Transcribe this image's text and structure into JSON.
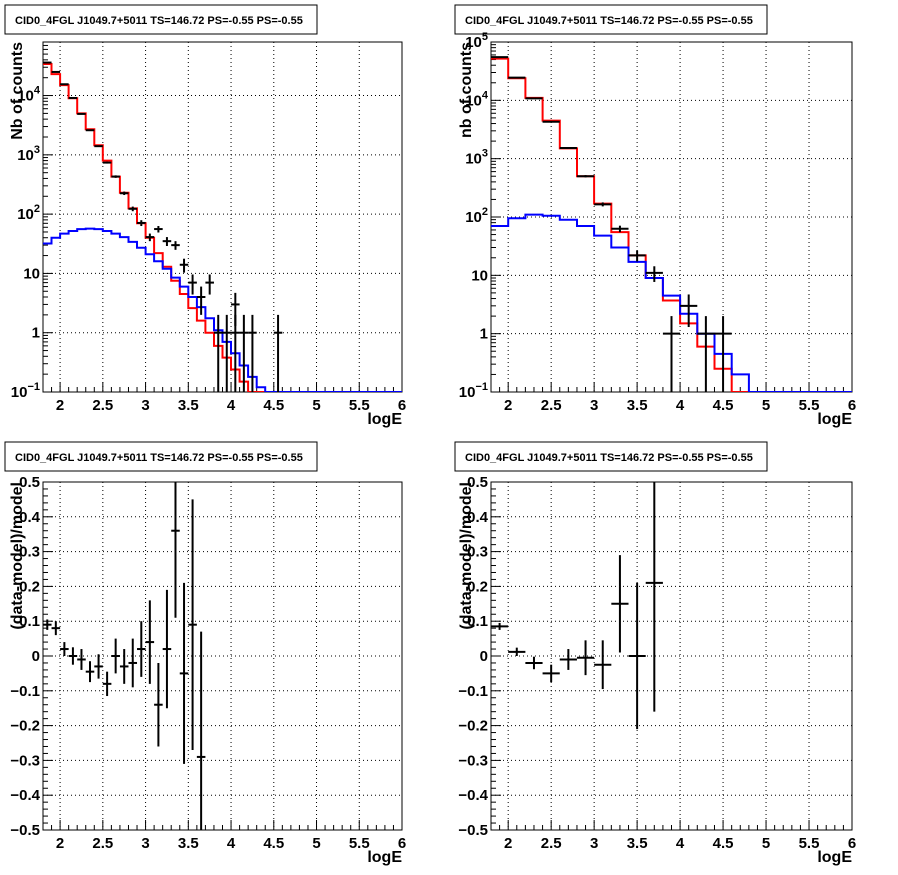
{
  "figure_title": "CID0_4FGL J1049.7+5011 TS=146.72 PS=-0.55 PS=-0.55",
  "colors": {
    "data": "#000000",
    "total_model": "#ff0000",
    "background_model": "#0000ff",
    "grid": "#000000",
    "frame": "#000000"
  },
  "chart_data": [
    {
      "type": "line",
      "title": "CID0_4FGL J1049.7+5011 TS=146.72 PS=-0.55 PS=-0.55",
      "xlabel": "logE",
      "ylabel": "Nb of counts",
      "log_y": true,
      "grid": true,
      "xlim": [
        1.8,
        6.0
      ],
      "ylim": [
        0.1,
        80000
      ],
      "xticks": [
        "2",
        "2.5",
        "3",
        "3.5",
        "4",
        "4.5",
        "5",
        "5.5",
        "6"
      ],
      "yticks": [
        "10^-1",
        "1",
        "10",
        "10^2",
        "10^3",
        "10^4"
      ],
      "bin_edges": [
        1.8,
        1.9,
        2.0,
        2.1,
        2.2,
        2.3,
        2.4,
        2.5,
        2.6,
        2.7,
        2.8,
        2.9,
        3.0,
        3.1,
        3.2,
        3.3,
        3.4,
        3.5,
        3.6,
        3.7,
        3.8,
        3.9,
        4.0,
        4.1,
        4.2,
        4.3,
        4.4,
        4.5,
        4.6,
        4.7,
        4.8,
        4.9,
        5.0,
        5.1,
        5.2,
        5.3,
        5.4,
        5.5,
        5.6,
        5.7,
        5.8,
        5.9,
        6.0
      ],
      "series": [
        {
          "role": "total_model",
          "values": [
            34000,
            23000,
            15000,
            9000,
            5000,
            2700,
            1450,
            800,
            430,
            230,
            125,
            70,
            40,
            22,
            13,
            7.5,
            4.5,
            2.6,
            1.6,
            1.0,
            0.6,
            0.38,
            0.24,
            0.15,
            0.1,
            0.1,
            0.1,
            0.1,
            0.1,
            0.1,
            0.1,
            0.1,
            0.1,
            0.1,
            0.1,
            0.1,
            0.1,
            0.1,
            0.1,
            0.1,
            0.1,
            0.1
          ]
        },
        {
          "role": "background_model",
          "values": [
            32,
            40,
            47,
            52,
            56,
            57,
            56,
            52,
            47,
            41,
            34,
            27,
            21,
            16,
            12,
            8.5,
            6,
            4,
            2.7,
            1.75,
            1.1,
            0.7,
            0.45,
            0.28,
            0.18,
            0.12,
            0.1,
            0.1,
            0.1,
            0.1,
            0.1,
            0.1,
            0.1,
            0.1,
            0.1,
            0.1,
            0.1,
            0.1,
            0.1,
            0.1,
            0.1,
            0.1
          ]
        },
        {
          "role": "data",
          "points": [
            {
              "x": 1.85,
              "y": 36000,
              "lo": 35800,
              "hi": 36200
            },
            {
              "x": 1.95,
              "y": 25000,
              "lo": 24850,
              "hi": 25150
            },
            {
              "x": 2.05,
              "y": 15500,
              "lo": 15380,
              "hi": 15620
            },
            {
              "x": 2.15,
              "y": 9100,
              "lo": 9000,
              "hi": 9200
            },
            {
              "x": 2.25,
              "y": 4900,
              "lo": 4830,
              "hi": 4970
            },
            {
              "x": 2.35,
              "y": 2600,
              "lo": 2550,
              "hi": 2650
            },
            {
              "x": 2.45,
              "y": 1400,
              "lo": 1360,
              "hi": 1440
            },
            {
              "x": 2.55,
              "y": 740,
              "lo": 713,
              "hi": 767
            },
            {
              "x": 2.65,
              "y": 430,
              "lo": 409,
              "hi": 451
            },
            {
              "x": 2.75,
              "y": 225,
              "lo": 210,
              "hi": 240
            },
            {
              "x": 2.85,
              "y": 123,
              "lo": 112,
              "hi": 134
            },
            {
              "x": 2.95,
              "y": 71,
              "lo": 63,
              "hi": 79
            },
            {
              "x": 3.05,
              "y": 41,
              "lo": 35,
              "hi": 47
            },
            {
              "x": 3.15,
              "y": 56,
              "lo": 49,
              "hi": 63
            },
            {
              "x": 3.25,
              "y": 35,
              "lo": 29,
              "hi": 41
            },
            {
              "x": 3.35,
              "y": 30,
              "lo": 25,
              "hi": 35
            },
            {
              "x": 3.45,
              "y": 14,
              "lo": 10.3,
              "hi": 17.7
            },
            {
              "x": 3.55,
              "y": 7,
              "lo": 4.4,
              "hi": 9.6
            },
            {
              "x": 3.65,
              "y": 4,
              "lo": 2,
              "hi": 6
            },
            {
              "x": 3.75,
              "y": 7,
              "lo": 4.4,
              "hi": 9.6
            },
            {
              "x": 3.85,
              "y": 1,
              "lo": 0.1,
              "hi": 2
            },
            {
              "x": 3.95,
              "y": 1,
              "lo": 0.1,
              "hi": 2
            },
            {
              "x": 4.05,
              "y": 1,
              "lo": 0.1,
              "hi": 2
            },
            {
              "x": 4.05,
              "y": 3,
              "lo": 1.3,
              "hi": 4.7
            },
            {
              "x": 4.15,
              "y": 1,
              "lo": 0.1,
              "hi": 2
            },
            {
              "x": 4.25,
              "y": 1,
              "lo": 0.1,
              "hi": 2
            },
            {
              "x": 4.55,
              "y": 1,
              "lo": 0.1,
              "hi": 2
            }
          ]
        }
      ]
    },
    {
      "type": "line",
      "title": "CID0_4FGL J1049.7+5011 TS=146.72 PS=-0.55 PS=-0.55",
      "xlabel": "logE",
      "ylabel": "nb of counts",
      "log_y": true,
      "grid": true,
      "xlim": [
        1.8,
        6.0
      ],
      "ylim": [
        0.1,
        100000
      ],
      "xticks": [
        "2",
        "2.5",
        "3",
        "3.5",
        "4",
        "4.5",
        "5",
        "5.5",
        "6"
      ],
      "yticks": [
        "10^-1",
        "1",
        "10",
        "10^2",
        "10^3",
        "10^4",
        "10^5"
      ],
      "bin_edges": [
        1.8,
        2.0,
        2.2,
        2.4,
        2.6,
        2.8,
        3.0,
        3.2,
        3.4,
        3.6,
        3.8,
        4.0,
        4.2,
        4.4,
        4.6,
        4.8,
        5.0,
        5.2,
        5.4,
        5.6,
        5.8,
        6.0
      ],
      "series": [
        {
          "role": "total_model",
          "values": [
            52000,
            24000,
            11000,
            4500,
            1500,
            500,
            170,
            55,
            22,
            9,
            3.7,
            1.5,
            0.6,
            0.25,
            0.1,
            0.1,
            0.1,
            0.1,
            0.1,
            0.1,
            0.1
          ]
        },
        {
          "role": "background_model",
          "values": [
            70,
            95,
            110,
            105,
            90,
            70,
            48,
            30,
            17,
            9,
            4.5,
            2.2,
            1.0,
            0.45,
            0.2,
            0.1,
            0.1,
            0.1,
            0.1,
            0.1,
            0.1
          ]
        },
        {
          "role": "data",
          "points": [
            {
              "x": 1.9,
              "y": 55000,
              "lo": 54750,
              "hi": 55250
            },
            {
              "x": 2.1,
              "y": 24500,
              "lo": 24340,
              "hi": 24660
            },
            {
              "x": 2.3,
              "y": 10800,
              "lo": 10700,
              "hi": 10900
            },
            {
              "x": 2.5,
              "y": 4300,
              "lo": 4230,
              "hi": 4370
            },
            {
              "x": 2.7,
              "y": 1520,
              "lo": 1480,
              "hi": 1560
            },
            {
              "x": 2.9,
              "y": 500,
              "lo": 478,
              "hi": 522
            },
            {
              "x": 3.1,
              "y": 165,
              "lo": 152,
              "hi": 178
            },
            {
              "x": 3.3,
              "y": 63,
              "lo": 55,
              "hi": 71
            },
            {
              "x": 3.5,
              "y": 22,
              "lo": 17.3,
              "hi": 26.7
            },
            {
              "x": 3.7,
              "y": 11,
              "lo": 7.7,
              "hi": 14.3
            },
            {
              "x": 3.9,
              "y": 1,
              "lo": 0.1,
              "hi": 2
            },
            {
              "x": 4.1,
              "y": 3,
              "lo": 1.3,
              "hi": 4.7
            },
            {
              "x": 4.3,
              "y": 1,
              "lo": 0.1,
              "hi": 2
            },
            {
              "x": 4.5,
              "y": 1,
              "lo": 0.1,
              "hi": 2
            }
          ]
        }
      ]
    },
    {
      "type": "scatter",
      "title": "CID0_4FGL J1049.7+5011 TS=146.72 PS=-0.55 PS=-0.55",
      "xlabel": "logE",
      "ylabel": "(data-model)/model",
      "log_y": false,
      "grid": true,
      "xlim": [
        1.8,
        6.0
      ],
      "ylim": [
        -0.5,
        0.5
      ],
      "xticks": [
        "2",
        "2.5",
        "3",
        "3.5",
        "4",
        "4.5",
        "5",
        "5.5",
        "6"
      ],
      "yticks": [
        "−0.5",
        "−0.4",
        "−0.3",
        "−0.2",
        "−0.1",
        "0",
        "0.1",
        "0.2",
        "0.3",
        "0.4",
        "0.5"
      ],
      "x_halfwidth": 0.05,
      "series": [
        {
          "role": "data",
          "points": [
            {
              "x": 1.85,
              "y": 0.09,
              "err": 0.015
            },
            {
              "x": 1.95,
              "y": 0.08,
              "err": 0.02
            },
            {
              "x": 2.05,
              "y": 0.02,
              "err": 0.02
            },
            {
              "x": 2.15,
              "y": 0.0,
              "err": 0.025
            },
            {
              "x": 2.25,
              "y": -0.01,
              "err": 0.03
            },
            {
              "x": 2.35,
              "y": -0.045,
              "err": 0.03
            },
            {
              "x": 2.45,
              "y": -0.03,
              "err": 0.035
            },
            {
              "x": 2.55,
              "y": -0.08,
              "err": 0.035
            },
            {
              "x": 2.65,
              "y": 0.0,
              "err": 0.05
            },
            {
              "x": 2.75,
              "y": -0.03,
              "err": 0.05
            },
            {
              "x": 2.85,
              "y": -0.02,
              "err": 0.07
            },
            {
              "x": 2.95,
              "y": 0.02,
              "err": 0.08
            },
            {
              "x": 3.05,
              "y": 0.04,
              "err": 0.12
            },
            {
              "x": 3.15,
              "y": -0.14,
              "err": 0.12
            },
            {
              "x": 3.25,
              "y": 0.02,
              "err": 0.17
            },
            {
              "x": 3.35,
              "y": 0.36,
              "err": 0.25
            },
            {
              "x": 3.45,
              "y": -0.05,
              "err": 0.26
            },
            {
              "x": 3.55,
              "y": 0.09,
              "err": 0.36
            },
            {
              "x": 3.65,
              "y": -0.29,
              "err": 0.36
            }
          ]
        }
      ]
    },
    {
      "type": "scatter",
      "title": "CID0_4FGL J1049.7+5011 TS=146.72 PS=-0.55 PS=-0.55",
      "xlabel": "logE",
      "ylabel": "(data-model)/model",
      "log_y": false,
      "grid": true,
      "xlim": [
        1.8,
        6.0
      ],
      "ylim": [
        -0.5,
        0.5
      ],
      "xticks": [
        "2",
        "2.5",
        "3",
        "3.5",
        "4",
        "4.5",
        "5",
        "5.5",
        "6"
      ],
      "yticks": [
        "−0.5",
        "−0.4",
        "−0.3",
        "−0.2",
        "−0.1",
        "0",
        "0.1",
        "0.2",
        "0.3",
        "0.4",
        "0.5"
      ],
      "x_halfwidth": 0.1,
      "series": [
        {
          "role": "data",
          "points": [
            {
              "x": 1.9,
              "y": 0.085,
              "err": 0.01
            },
            {
              "x": 2.1,
              "y": 0.012,
              "err": 0.012
            },
            {
              "x": 2.3,
              "y": -0.02,
              "err": 0.018
            },
            {
              "x": 2.5,
              "y": -0.05,
              "err": 0.025
            },
            {
              "x": 2.7,
              "y": -0.01,
              "err": 0.03
            },
            {
              "x": 2.9,
              "y": -0.005,
              "err": 0.05
            },
            {
              "x": 3.1,
              "y": -0.025,
              "err": 0.07
            },
            {
              "x": 3.3,
              "y": 0.15,
              "err": 0.14
            },
            {
              "x": 3.5,
              "y": 0.0,
              "err": 0.21
            },
            {
              "x": 3.7,
              "y": 0.21,
              "err": 0.37
            }
          ]
        }
      ]
    }
  ]
}
